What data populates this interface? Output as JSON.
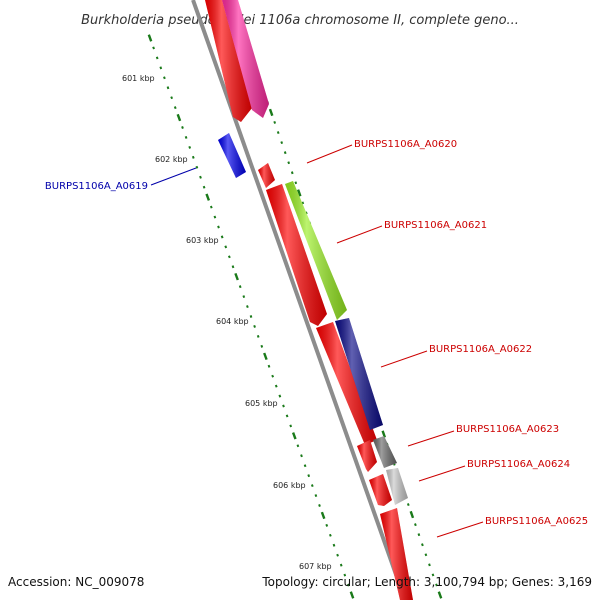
{
  "title": "Burkholderia pseudomallei 1106a chromosome II, complete geno...",
  "footer": {
    "accession": "Accession: NC_009078",
    "topology": "Topology: circular; Length: 3,100,794 bp; Genes: 3,169"
  },
  "colors": {
    "backbone": "#8c8c8c",
    "tick": "#1a7a1a",
    "forward_label": "#cc0000",
    "reverse_label": "#0000aa"
  },
  "scale_ticks": [
    {
      "label": "601 kbp"
    },
    {
      "label": "602 kbp"
    },
    {
      "label": "603 kbp"
    },
    {
      "label": "604 kbp"
    },
    {
      "label": "605 kbp"
    },
    {
      "label": "606 kbp"
    },
    {
      "label": "607 kbp"
    }
  ],
  "gene_labels": [
    {
      "text": "BURPS1106A_A0619",
      "color": "#0000aa"
    },
    {
      "text": "BURPS1106A_A0620",
      "color": "#cc0000"
    },
    {
      "text": "BURPS1106A_A0621",
      "color": "#cc0000"
    },
    {
      "text": "BURPS1106A_A0622",
      "color": "#cc0000"
    },
    {
      "text": "BURPS1106A_A0623",
      "color": "#cc0000"
    },
    {
      "text": "BURPS1106A_A0624",
      "color": "#cc0000"
    },
    {
      "text": "BURPS1106A_A0625",
      "color": "#cc0000"
    }
  ],
  "features": [
    {
      "name": "gene-a0617-cds",
      "color": "#ff0000"
    },
    {
      "name": "gene-a0618-cds",
      "color": "#ff2aa0"
    },
    {
      "name": "gene-a0619-cds",
      "color": "#0000ee"
    },
    {
      "name": "gene-a0620-cds",
      "color": "#ff0000"
    },
    {
      "name": "gene-a0621-cds",
      "color": "#ff0000"
    },
    {
      "name": "gene-a0621-product",
      "color": "#99ee22"
    },
    {
      "name": "gene-a0622-cds",
      "color": "#ff0000"
    },
    {
      "name": "gene-a0622-product",
      "color": "#0b0b88"
    },
    {
      "name": "gene-a0623-cds",
      "color": "#ff0000"
    },
    {
      "name": "gene-a0623-product",
      "color": "#6a6a6a"
    },
    {
      "name": "gene-a0624-cds",
      "color": "#ff0000"
    },
    {
      "name": "gene-a0624-product",
      "color": "#c8c8c8"
    },
    {
      "name": "gene-a0625-cds",
      "color": "#ff0000"
    }
  ]
}
